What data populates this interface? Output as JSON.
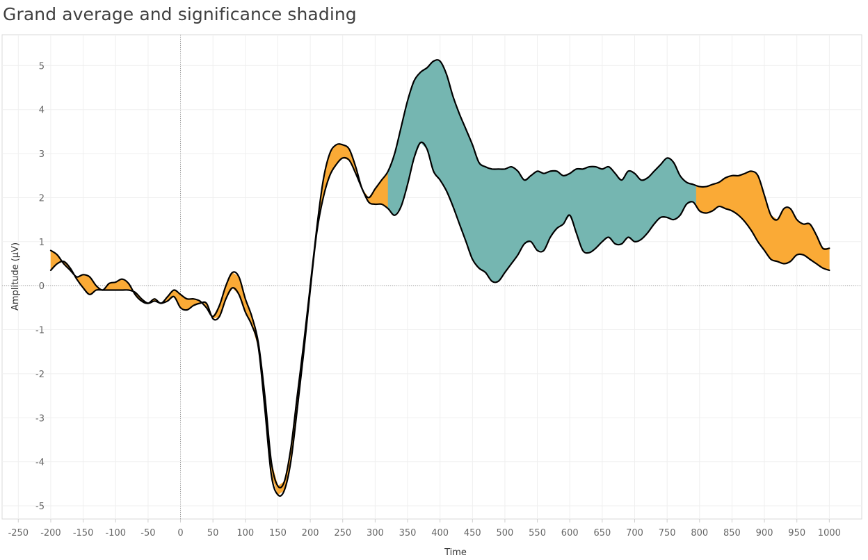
{
  "chart_data": {
    "type": "line",
    "title": "Grand average and significance shading",
    "xlabel": "Time",
    "ylabel": "Amplitude (μV)",
    "xlim": [
      -275,
      1050
    ],
    "ylim": [
      -5.3,
      5.7
    ],
    "x_ticks": [
      -250,
      -200,
      -150,
      -100,
      -50,
      0,
      50,
      100,
      150,
      200,
      250,
      300,
      350,
      400,
      450,
      500,
      550,
      600,
      650,
      700,
      750,
      800,
      850,
      900,
      950,
      1000
    ],
    "y_ticks": [
      -5,
      -4,
      -3,
      -2,
      -1,
      0,
      1,
      2,
      3,
      4,
      5
    ],
    "grid": true,
    "reference_lines": {
      "x": 0,
      "y": 0
    },
    "series": [
      {
        "x": [
          -200,
          -190,
          -180,
          -170,
          -160,
          -150,
          -140,
          -130,
          -120,
          -110,
          -100,
          -90,
          -80,
          -70,
          -60,
          -50,
          -40,
          -30,
          -20,
          -10,
          0,
          10,
          20,
          30,
          40,
          50,
          60,
          70,
          80,
          90,
          100,
          110,
          120,
          130,
          140,
          150,
          160,
          170,
          180,
          190,
          200,
          210,
          220,
          230,
          240,
          250,
          260,
          270,
          280,
          290,
          300,
          310,
          320,
          330,
          340,
          350,
          360,
          370,
          380,
          390,
          400,
          410,
          420,
          430,
          440,
          450,
          460,
          470,
          480,
          490,
          500,
          510,
          520,
          530,
          540,
          550,
          560,
          570,
          580,
          590,
          600,
          610,
          620,
          630,
          640,
          650,
          660,
          670,
          680,
          690,
          700,
          710,
          720,
          730,
          740,
          750,
          760,
          770,
          780,
          790,
          800,
          810,
          820,
          830,
          840,
          850,
          860,
          870,
          880,
          890,
          900,
          910,
          920,
          930,
          940,
          950,
          960,
          970,
          980,
          990,
          1000
        ],
        "y": [
          0.8,
          0.7,
          0.5,
          0.35,
          0.2,
          0.25,
          0.2,
          0.0,
          -0.1,
          0.05,
          0.08,
          0.15,
          0.05,
          -0.2,
          -0.35,
          -0.4,
          -0.3,
          -0.4,
          -0.25,
          -0.1,
          -0.2,
          -0.3,
          -0.3,
          -0.35,
          -0.5,
          -0.7,
          -0.45,
          0.0,
          0.3,
          0.2,
          -0.3,
          -0.7,
          -1.3,
          -2.5,
          -4.0,
          -4.55,
          -4.45,
          -3.7,
          -2.5,
          -1.3,
          0.0,
          1.3,
          2.4,
          3.0,
          3.2,
          3.2,
          3.1,
          2.7,
          2.2,
          2.0,
          2.2,
          2.4,
          2.6,
          3.0,
          3.6,
          4.2,
          4.65,
          4.85,
          4.95,
          5.1,
          5.1,
          4.8,
          4.3,
          3.9,
          3.55,
          3.2,
          2.8,
          2.7,
          2.65,
          2.65,
          2.65,
          2.7,
          2.6,
          2.4,
          2.5,
          2.6,
          2.55,
          2.6,
          2.6,
          2.5,
          2.55,
          2.65,
          2.65,
          2.7,
          2.7,
          2.65,
          2.7,
          2.55,
          2.4,
          2.6,
          2.55,
          2.4,
          2.45,
          2.6,
          2.75,
          2.9,
          2.8,
          2.5,
          2.35,
          2.3,
          2.25,
          2.25,
          2.3,
          2.35,
          2.45,
          2.5,
          2.5,
          2.55,
          2.6,
          2.5,
          2.05,
          1.6,
          1.5,
          1.75,
          1.75,
          1.5,
          1.4,
          1.4,
          1.15,
          0.85,
          0.85
        ]
      },
      {
        "x": [
          -200,
          -190,
          -180,
          -170,
          -160,
          -150,
          -140,
          -130,
          -120,
          -110,
          -100,
          -90,
          -80,
          -70,
          -60,
          -50,
          -40,
          -30,
          -20,
          -10,
          0,
          10,
          20,
          30,
          40,
          50,
          60,
          70,
          80,
          90,
          100,
          110,
          120,
          130,
          140,
          150,
          160,
          170,
          180,
          190,
          200,
          210,
          220,
          230,
          240,
          250,
          260,
          270,
          280,
          290,
          300,
          310,
          320,
          330,
          340,
          350,
          360,
          370,
          380,
          390,
          400,
          410,
          420,
          430,
          440,
          450,
          460,
          470,
          480,
          490,
          500,
          510,
          520,
          530,
          540,
          550,
          560,
          570,
          580,
          590,
          600,
          610,
          620,
          630,
          640,
          650,
          660,
          670,
          680,
          690,
          700,
          710,
          720,
          730,
          740,
          750,
          760,
          770,
          780,
          790,
          800,
          810,
          820,
          830,
          840,
          850,
          860,
          870,
          880,
          890,
          900,
          910,
          920,
          930,
          940,
          950,
          960,
          970,
          980,
          990,
          1000
        ],
        "y": [
          0.35,
          0.5,
          0.55,
          0.4,
          0.15,
          -0.05,
          -0.2,
          -0.1,
          -0.1,
          -0.1,
          -0.1,
          -0.1,
          -0.1,
          -0.15,
          -0.3,
          -0.4,
          -0.35,
          -0.4,
          -0.35,
          -0.25,
          -0.5,
          -0.55,
          -0.45,
          -0.4,
          -0.4,
          -0.75,
          -0.7,
          -0.3,
          -0.05,
          -0.2,
          -0.6,
          -0.9,
          -1.4,
          -2.8,
          -4.3,
          -4.75,
          -4.65,
          -4.0,
          -2.8,
          -1.5,
          -0.1,
          1.2,
          2.0,
          2.5,
          2.75,
          2.9,
          2.85,
          2.55,
          2.2,
          1.9,
          1.85,
          1.85,
          1.75,
          1.6,
          1.8,
          2.3,
          2.9,
          3.25,
          3.1,
          2.6,
          2.4,
          2.15,
          1.8,
          1.4,
          1.0,
          0.6,
          0.4,
          0.3,
          0.1,
          0.1,
          0.3,
          0.5,
          0.7,
          0.95,
          1.0,
          0.8,
          0.8,
          1.1,
          1.3,
          1.4,
          1.6,
          1.2,
          0.8,
          0.75,
          0.85,
          1.0,
          1.1,
          0.95,
          0.95,
          1.1,
          1.0,
          1.05,
          1.2,
          1.4,
          1.55,
          1.55,
          1.5,
          1.6,
          1.85,
          1.9,
          1.7,
          1.65,
          1.7,
          1.8,
          1.75,
          1.7,
          1.6,
          1.45,
          1.25,
          1.0,
          0.8,
          0.6,
          0.55,
          0.5,
          0.55,
          0.7,
          0.7,
          0.6,
          0.5,
          0.4,
          0.35
        ]
      }
    ],
    "significance_shading": [
      {
        "from": -200,
        "to": 320,
        "color": "#FAAA36"
      },
      {
        "from": 320,
        "to": 795,
        "color": "#75B6B1"
      },
      {
        "from": 795,
        "to": 1000,
        "color": "#FAAA36"
      }
    ],
    "line_color": "#000000"
  }
}
